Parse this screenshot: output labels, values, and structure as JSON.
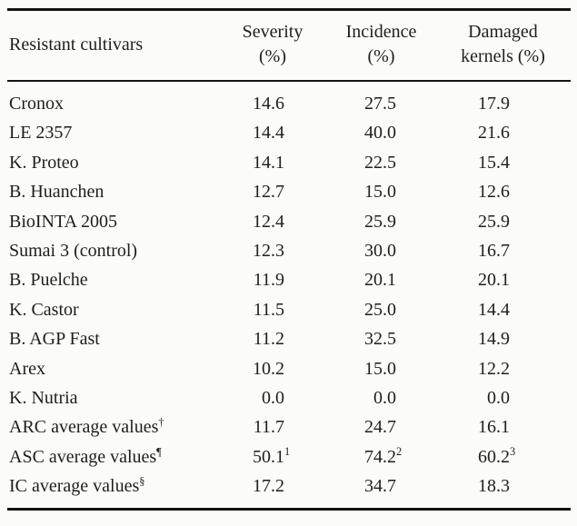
{
  "colors": {
    "background": "#fbfbf8",
    "text": "#1e1e1c",
    "rule": "#141414"
  },
  "table": {
    "header": {
      "cultivars": "Resistant cultivars",
      "severity_line1": "Severity",
      "severity_line2": "(%)",
      "incidence_line1": "Incidence",
      "incidence_line2": "(%)",
      "damaged_line1": "Damaged",
      "damaged_line2": "kernels (%)"
    },
    "rows": [
      {
        "cultivar": "Cronox",
        "severity": "14.6",
        "incidence": "27.5",
        "damaged": "17.9"
      },
      {
        "cultivar": "LE 2357",
        "severity": "14.4",
        "incidence": "40.0",
        "damaged": "21.6"
      },
      {
        "cultivar": "K. Proteo",
        "severity": "14.1",
        "incidence": "22.5",
        "damaged": "15.4"
      },
      {
        "cultivar": "B. Huanchen",
        "severity": "12.7",
        "incidence": "15.0",
        "damaged": "12.6"
      },
      {
        "cultivar": "BioINTA 2005",
        "severity": "12.4",
        "incidence": "25.9",
        "damaged": "25.9"
      },
      {
        "cultivar": "Sumai 3 (control)",
        "severity": "12.3",
        "incidence": "30.0",
        "damaged": "16.7"
      },
      {
        "cultivar": "B. Puelche",
        "severity": "11.9",
        "incidence": "20.1",
        "damaged": "20.1"
      },
      {
        "cultivar": "K. Castor",
        "severity": "11.5",
        "incidence": "25.0",
        "damaged": "14.4"
      },
      {
        "cultivar": "B. AGP Fast",
        "severity": "11.2",
        "incidence": "32.5",
        "damaged": "14.9"
      },
      {
        "cultivar": "Arex",
        "severity": "10.2",
        "incidence": "15.0",
        "damaged": "12.2"
      },
      {
        "cultivar": "K. Nutria",
        "severity": "0.0",
        "incidence": "0.0",
        "damaged": "0.0"
      },
      {
        "cultivar": "ARC average values",
        "cultivar_sup": "†",
        "severity": "11.7",
        "incidence": "24.7",
        "damaged": "16.1"
      },
      {
        "cultivar": "ASC average values",
        "cultivar_sup": "¶",
        "severity": "50.1",
        "severity_sup": "1",
        "incidence": "74.2",
        "incidence_sup": "2",
        "damaged": "60.2",
        "damaged_sup": "3"
      },
      {
        "cultivar": "IC average values",
        "cultivar_sup": "§",
        "severity": "17.2",
        "incidence": "34.7",
        "damaged": "18.3"
      }
    ]
  }
}
